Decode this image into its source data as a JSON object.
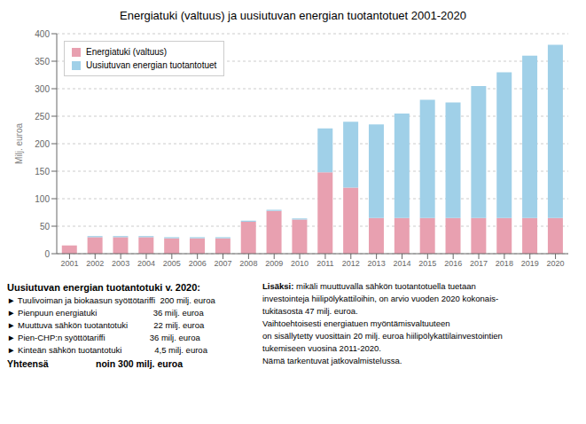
{
  "chart_data": {
    "type": "bar",
    "title": "Energiatuki (valtuus) ja uusiutuvan energian tuotantotuet 2001-2020",
    "categories": [
      2001,
      2002,
      2003,
      2004,
      2005,
      2006,
      2007,
      2008,
      2009,
      2010,
      2011,
      2012,
      2013,
      2014,
      2015,
      2016,
      2017,
      2018,
      2019,
      2020
    ],
    "series": [
      {
        "name": "Energiatuki (valtuus)",
        "color": "#e8a0b0",
        "values": [
          15,
          30,
          30,
          30,
          28,
          28,
          28,
          58,
          78,
          62,
          148,
          120,
          65,
          65,
          65,
          65,
          65,
          65,
          65,
          65
        ]
      },
      {
        "name": "Uusiutuvan energian tuotantotuet",
        "color": "#a0d0e8",
        "values": [
          0,
          2,
          2,
          2,
          2,
          2,
          2,
          2,
          2,
          2,
          80,
          120,
          170,
          190,
          215,
          210,
          240,
          265,
          295,
          315
        ]
      }
    ],
    "stacked": true,
    "ylabel": "Milj. euroa",
    "ylim": [
      0,
      400
    ],
    "yticks": [
      0,
      50,
      100,
      150,
      200,
      250,
      300,
      350,
      400
    ],
    "grid": true,
    "legend": "upper left",
    "annotations": [
      "Uusiutuvan energian tuotantotuki v. 2020:",
      "► Tuulivoiman ja biokaasun syöttötariffi  200 milj. euroa",
      "► Pienpuun energiatuki                        36 milj. euroa",
      "► Muuttuva sähkön tuotantotuki           22 milj. euroa",
      "► Pien-CHP:n syöttötariffi                   36 milj. euroa",
      "► Kinteän sähkön tuotantotuki              4,5 milj. euroa",
      "Yhteensä",
      "noin 300 milj. euroa",
      "Lisäksi:",
      "mikäli muuttuvalla sähkön tuotantotuella tuetaan",
      "investointeja hiilipölykattiloihin, on arvio vuoden 2020 kokonais-",
      "tukitasosta 47 milj. euroa.",
      "Vaihtoehtoisesti energiatuen myöntämisvaltuuteen",
      "on sisällytetty vuosittain 20 milj. euroa hiilipölykattilainvestointien",
      "tukemiseen vuosina 2011-2020.",
      "Nämä tarkentuvat jatkovalmistelussa."
    ]
  }
}
